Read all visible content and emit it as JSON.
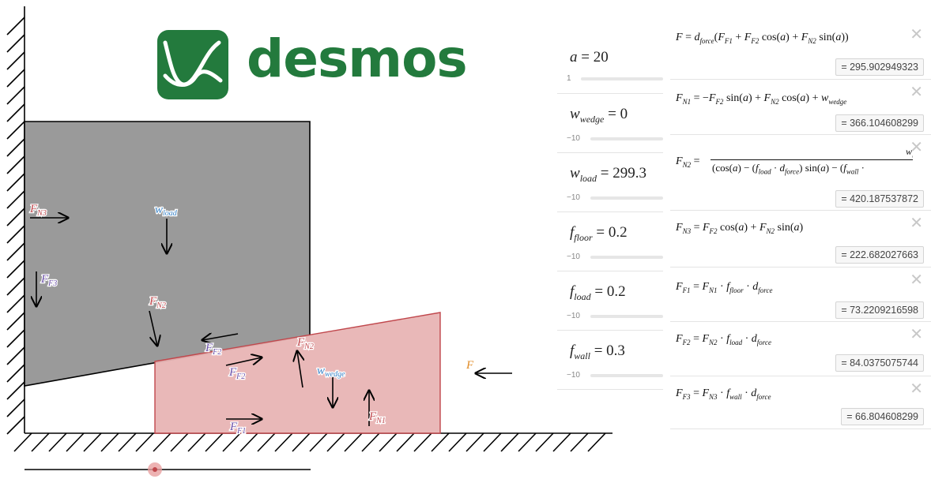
{
  "logo": {
    "word": "desmos"
  },
  "colors": {
    "brand": "#237a3d",
    "load_fill": "#9a9a9a",
    "wedge_fill": "#e8b4b4",
    "wedge_stroke": "#c0474c",
    "label_red": "#c0474c",
    "label_blue": "#3a84c8",
    "label_purple": "#6b4fa8",
    "label_orange": "#e08a24"
  },
  "canvas_labels": {
    "fn3": [
      "F",
      "N3"
    ],
    "wload": [
      "w",
      "load"
    ],
    "ff3": [
      "F",
      "F3"
    ],
    "fn2_load": [
      "F",
      "N2"
    ],
    "ff2_load": [
      "F",
      "F2"
    ],
    "fn2_wedge": [
      "F",
      "N2"
    ],
    "ff2_wedge": [
      "F",
      "F2"
    ],
    "wwedge": [
      "w",
      "wedge"
    ],
    "fn1": [
      "F",
      "N1"
    ],
    "ff1": [
      "F",
      "F1"
    ],
    "f_applied": "F"
  },
  "sliders": [
    {
      "var": "a",
      "sub": "",
      "value": "20",
      "min": "1",
      "fill": 0.0
    },
    {
      "var": "w",
      "sub": "wedge",
      "value": "0",
      "min": "−10",
      "fill": 0.0
    },
    {
      "var": "w",
      "sub": "load",
      "value": "299.3",
      "min": "−10",
      "fill": 0.03
    },
    {
      "var": "f",
      "sub": "floor",
      "value": "0.2",
      "min": "−10",
      "fill": 0.0
    },
    {
      "var": "f",
      "sub": "load",
      "value": "0.2",
      "min": "−10",
      "fill": 0.0
    },
    {
      "var": "f",
      "sub": "wall",
      "value": "0.3",
      "min": "−10",
      "fill": 0.0
    }
  ],
  "expressions": [
    {
      "value": "= 295.902949323"
    },
    {
      "value": "= 366.104608299"
    },
    {
      "value": "= 420.187537872"
    },
    {
      "value": "= 222.682027663"
    },
    {
      "value": "= 73.2209216598"
    },
    {
      "value": "= 84.0375075744"
    },
    {
      "value": "= 66.804608299"
    }
  ],
  "close_glyph": "✕"
}
